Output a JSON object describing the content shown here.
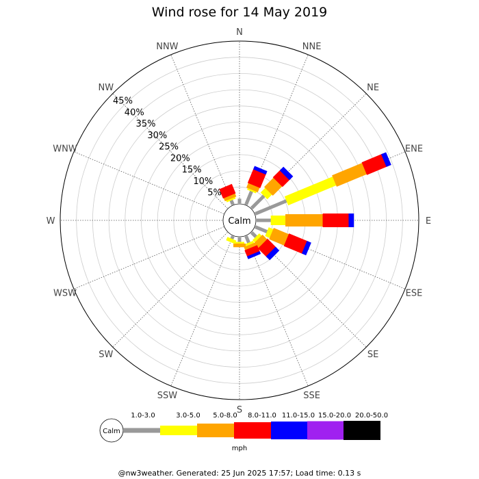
{
  "chart_data": {
    "type": "windrose",
    "title": "Wind rose for 14 May 2019",
    "rmax_percent": 50,
    "ring_labels": [
      "5%",
      "10%",
      "15%",
      "20%",
      "25%",
      "30%",
      "35%",
      "40%",
      "45%"
    ],
    "calm_label": "Calm",
    "directions": [
      "N",
      "NNE",
      "NE",
      "ENE",
      "E",
      "ESE",
      "SE",
      "SSE",
      "S",
      "SSW",
      "SW",
      "WSW",
      "W",
      "WNW",
      "NW",
      "NNW"
    ],
    "speed_bins": [
      "1.0-3.0",
      "3.0-5.0",
      "5.0-8.0",
      "8.0-11.0",
      "11.0-15.0",
      "15.0-20.0",
      "20.0-50.0"
    ],
    "bin_colors": [
      "#999999",
      "#ffff00",
      "#ffa500",
      "#ff0000",
      "#0000ff",
      "#a020f0",
      "#000000"
    ],
    "unit": "mph",
    "series": [
      {
        "direction": "N",
        "cumulative": [
          1.4,
          1.4,
          1.4,
          1.4,
          1.4,
          1.4,
          1.4
        ]
      },
      {
        "direction": "NNE",
        "cumulative": [
          5.0,
          5.5,
          7.0,
          11.5,
          12.0,
          12.0,
          12.0
        ]
      },
      {
        "direction": "NE",
        "cumulative": [
          6.0,
          8.0,
          12.0,
          15.0,
          16.0,
          16.0,
          16.0
        ]
      },
      {
        "direction": "ENE",
        "cumulative": [
          11.0,
          27.0,
          37.0,
          43.5,
          44.5,
          44.5,
          44.5
        ]
      },
      {
        "direction": "E",
        "cumulative": [
          5.0,
          9.5,
          21.0,
          29.0,
          30.0,
          30.0,
          30.0
        ]
      },
      {
        "direction": "ESE",
        "cumulative": [
          4.5,
          6.0,
          11.0,
          17.0,
          17.8,
          17.8,
          17.8
        ]
      },
      {
        "direction": "SE",
        "cumulative": [
          2.5,
          3.5,
          5.5,
          9.0,
          10.0,
          10.0,
          10.0
        ]
      },
      {
        "direction": "SSE",
        "cumulative": [
          2.8,
          3.5,
          4.5,
          6.5,
          6.8,
          6.8,
          6.8
        ]
      },
      {
        "direction": "S",
        "cumulative": [
          2.0,
          2.5,
          3.0,
          3.0,
          3.0,
          3.0,
          3.0
        ]
      },
      {
        "direction": "SSW",
        "cumulative": [
          1.5,
          2.0,
          2.0,
          2.0,
          2.0,
          2.0,
          2.0
        ]
      },
      {
        "direction": "SW",
        "cumulative": [
          0,
          0,
          0,
          0,
          0,
          0,
          0
        ]
      },
      {
        "direction": "WSW",
        "cumulative": [
          0,
          0,
          0,
          0,
          0,
          0,
          0
        ]
      },
      {
        "direction": "W",
        "cumulative": [
          0,
          0,
          0,
          0,
          0,
          0,
          0
        ]
      },
      {
        "direction": "WNW",
        "cumulative": [
          0,
          0,
          0,
          0,
          0,
          0,
          0
        ]
      },
      {
        "direction": "NW",
        "cumulative": [
          0,
          0,
          0,
          0,
          0,
          0,
          0
        ]
      },
      {
        "direction": "NNW",
        "cumulative": [
          2.0,
          2.5,
          3.5,
          6.0,
          6.0,
          6.0,
          6.0
        ]
      }
    ],
    "grid": true
  },
  "footer": "@nw3weather. Generated: 25 Jun 2025 17:57; Load time: 0.13 s"
}
